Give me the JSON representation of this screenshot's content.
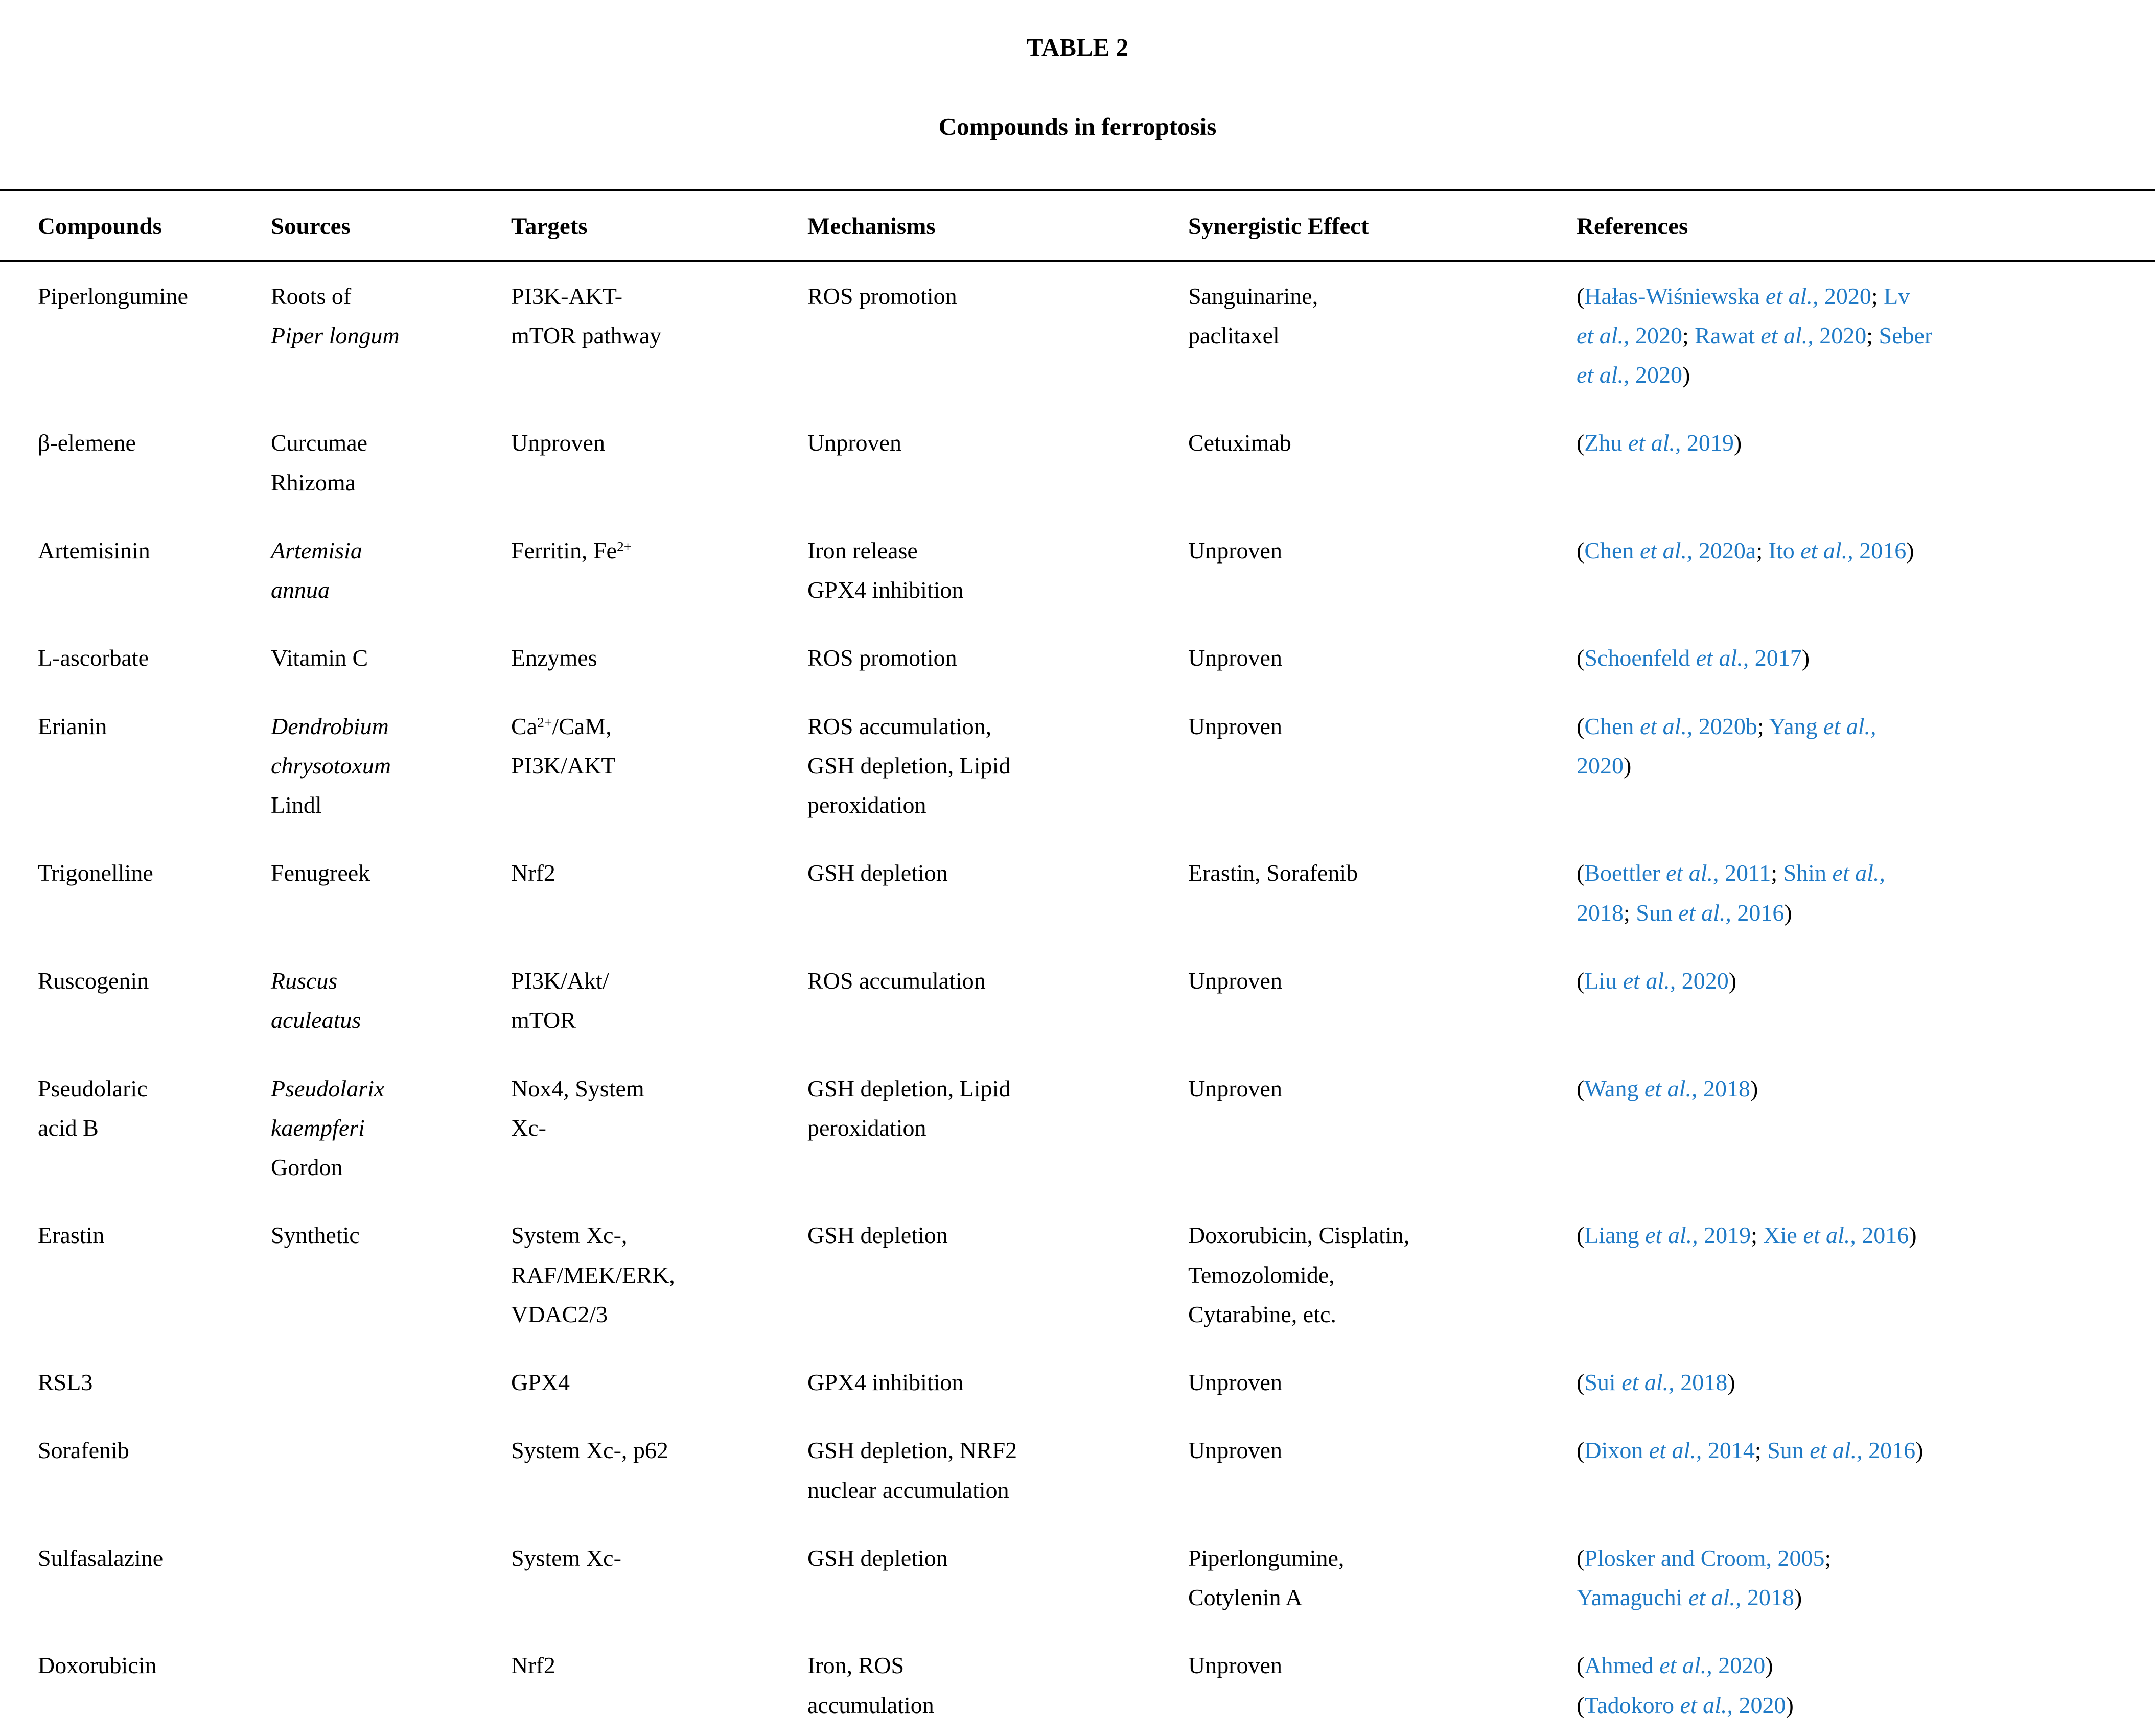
{
  "doc": {
    "label": "TABLE 2",
    "title": "Compounds in ferroptosis"
  },
  "colors": {
    "citation_blue": "#1F7AC6",
    "text": "#000000",
    "rule": "#000000",
    "background": "#FFFFFF"
  },
  "table": {
    "column_keys": [
      "compounds",
      "sources",
      "targets",
      "mechanisms",
      "synergistic-effect",
      "references"
    ],
    "columns": [
      "Compounds",
      "Sources",
      "Targets",
      "Mechanisms",
      "Synergistic Effect",
      "References"
    ],
    "rows": [
      {
        "cells": [
          [
            {
              "t": "Piperlongumine"
            }
          ],
          [
            {
              "t": "Roots of"
            },
            {
              "br": true
            },
            {
              "t": "Piper longum",
              "i": true
            }
          ],
          [
            {
              "t": "PI3K-AKT-"
            },
            {
              "br": true
            },
            {
              "t": "mTOR pathway"
            }
          ],
          [
            {
              "t": "ROS promotion"
            }
          ],
          [
            {
              "t": "Sanguinarine,"
            },
            {
              "br": true
            },
            {
              "t": "paclitaxel"
            }
          ],
          [
            {
              "t": "("
            },
            {
              "cite": [
                {
                  "t": "Hałas-Wiśniewska "
                },
                {
                  "t": "et al.,",
                  "i": true
                },
                {
                  "t": " 2020"
                }
              ]
            },
            {
              "t": "; "
            },
            {
              "cite": [
                {
                  "t": "Lv"
                },
                {
                  "br": true
                },
                {
                  "t": "et al.,",
                  "i": true
                },
                {
                  "t": " 2020"
                }
              ]
            },
            {
              "t": "; "
            },
            {
              "cite": [
                {
                  "t": "Rawat "
                },
                {
                  "t": "et al.,",
                  "i": true
                },
                {
                  "t": " 2020"
                }
              ]
            },
            {
              "t": "; "
            },
            {
              "cite": [
                {
                  "t": "Seber"
                },
                {
                  "br": true
                },
                {
                  "t": "et al.,",
                  "i": true
                },
                {
                  "t": " 2020"
                }
              ]
            },
            {
              "t": ")"
            }
          ]
        ]
      },
      {
        "cells": [
          [
            {
              "t": "β-elemene"
            }
          ],
          [
            {
              "t": "Curcumae"
            },
            {
              "br": true
            },
            {
              "t": "Rhizoma"
            }
          ],
          [
            {
              "t": "Unproven"
            }
          ],
          [
            {
              "t": "Unproven"
            }
          ],
          [
            {
              "t": "Cetuximab"
            }
          ],
          [
            {
              "t": "("
            },
            {
              "cite": [
                {
                  "t": "Zhu "
                },
                {
                  "t": "et al.,",
                  "i": true
                },
                {
                  "t": " 2019"
                }
              ]
            },
            {
              "t": ")"
            }
          ]
        ]
      },
      {
        "cells": [
          [
            {
              "t": "Artemisinin"
            }
          ],
          [
            {
              "t": "Artemisia",
              "i": true
            },
            {
              "br": true
            },
            {
              "t": "annua",
              "i": true
            }
          ],
          [
            {
              "t": "Ferritin, Fe"
            },
            {
              "t": "2+",
              "sup": true
            }
          ],
          [
            {
              "t": "Iron release"
            },
            {
              "br": true
            },
            {
              "t": "GPX4 inhibition"
            }
          ],
          [
            {
              "t": "Unproven"
            }
          ],
          [
            {
              "t": "("
            },
            {
              "cite": [
                {
                  "t": "Chen "
                },
                {
                  "t": "et al.,",
                  "i": true
                },
                {
                  "t": " 2020a"
                }
              ]
            },
            {
              "t": "; "
            },
            {
              "cite": [
                {
                  "t": "Ito "
                },
                {
                  "t": "et al.,",
                  "i": true
                },
                {
                  "t": " 2016"
                }
              ]
            },
            {
              "t": ")"
            }
          ]
        ]
      },
      {
        "cells": [
          [
            {
              "t": "L-ascorbate"
            }
          ],
          [
            {
              "t": "Vitamin C"
            }
          ],
          [
            {
              "t": "Enzymes"
            }
          ],
          [
            {
              "t": "ROS promotion"
            }
          ],
          [
            {
              "t": "Unproven"
            }
          ],
          [
            {
              "t": "("
            },
            {
              "cite": [
                {
                  "t": "Schoenfeld "
                },
                {
                  "t": "et al.,",
                  "i": true
                },
                {
                  "t": " 2017"
                }
              ]
            },
            {
              "t": ")"
            }
          ]
        ]
      },
      {
        "cells": [
          [
            {
              "t": "Erianin"
            }
          ],
          [
            {
              "t": "Dendrobium",
              "i": true
            },
            {
              "br": true
            },
            {
              "t": "chrysotoxum",
              "i": true
            },
            {
              "br": true
            },
            {
              "t": "Lindl"
            }
          ],
          [
            {
              "t": "Ca"
            },
            {
              "t": "2+",
              "sup": true
            },
            {
              "t": "/CaM,"
            },
            {
              "br": true
            },
            {
              "t": "PI3K/AKT"
            }
          ],
          [
            {
              "t": "ROS accumulation,"
            },
            {
              "br": true
            },
            {
              "t": "GSH depletion, Lipid"
            },
            {
              "br": true
            },
            {
              "t": "peroxidation"
            }
          ],
          [
            {
              "t": "Unproven"
            }
          ],
          [
            {
              "t": "("
            },
            {
              "cite": [
                {
                  "t": "Chen "
                },
                {
                  "t": "et al.,",
                  "i": true
                },
                {
                  "t": " 2020b"
                }
              ]
            },
            {
              "t": "; "
            },
            {
              "cite": [
                {
                  "t": "Yang "
                },
                {
                  "t": "et al.,",
                  "i": true
                },
                {
                  "br": true
                },
                {
                  "t": "2020"
                }
              ]
            },
            {
              "t": ")"
            }
          ]
        ]
      },
      {
        "cells": [
          [
            {
              "t": "Trigonelline"
            }
          ],
          [
            {
              "t": "Fenugreek"
            }
          ],
          [
            {
              "t": "Nrf2"
            }
          ],
          [
            {
              "t": "GSH depletion"
            }
          ],
          [
            {
              "t": "Erastin, Sorafenib"
            }
          ],
          [
            {
              "t": "("
            },
            {
              "cite": [
                {
                  "t": "Boettler "
                },
                {
                  "t": "et al.,",
                  "i": true
                },
                {
                  "t": " 2011"
                }
              ]
            },
            {
              "t": "; "
            },
            {
              "cite": [
                {
                  "t": "Shin "
                },
                {
                  "t": "et al.,",
                  "i": true
                },
                {
                  "br": true
                },
                {
                  "t": "2018"
                }
              ]
            },
            {
              "t": "; "
            },
            {
              "cite": [
                {
                  "t": "Sun "
                },
                {
                  "t": "et al.,",
                  "i": true
                },
                {
                  "t": " 2016"
                }
              ]
            },
            {
              "t": ")"
            }
          ]
        ]
      },
      {
        "cells": [
          [
            {
              "t": "Ruscogenin"
            }
          ],
          [
            {
              "t": "Ruscus",
              "i": true
            },
            {
              "br": true
            },
            {
              "t": "aculeatus",
              "i": true
            }
          ],
          [
            {
              "t": "PI3K/Akt/"
            },
            {
              "br": true
            },
            {
              "t": "mTOR"
            }
          ],
          [
            {
              "t": "ROS accumulation"
            }
          ],
          [
            {
              "t": "Unproven"
            }
          ],
          [
            {
              "t": "("
            },
            {
              "cite": [
                {
                  "t": "Liu "
                },
                {
                  "t": "et al.,",
                  "i": true
                },
                {
                  "t": " 2020"
                }
              ]
            },
            {
              "t": ")"
            }
          ]
        ]
      },
      {
        "cells": [
          [
            {
              "t": "Pseudolaric"
            },
            {
              "br": true
            },
            {
              "t": "acid B"
            }
          ],
          [
            {
              "t": "Pseudolarix",
              "i": true
            },
            {
              "br": true
            },
            {
              "t": "kaempferi",
              "i": true
            },
            {
              "br": true
            },
            {
              "t": "Gordon"
            }
          ],
          [
            {
              "t": "Nox4, System"
            },
            {
              "br": true
            },
            {
              "t": "Xc-"
            }
          ],
          [
            {
              "t": "GSH depletion, Lipid"
            },
            {
              "br": true
            },
            {
              "t": "peroxidation"
            }
          ],
          [
            {
              "t": "Unproven"
            }
          ],
          [
            {
              "t": "("
            },
            {
              "cite": [
                {
                  "t": "Wang "
                },
                {
                  "t": "et al.,",
                  "i": true
                },
                {
                  "t": " 2018"
                }
              ]
            },
            {
              "t": ")"
            }
          ]
        ]
      },
      {
        "cells": [
          [
            {
              "t": "Erastin"
            }
          ],
          [
            {
              "t": "Synthetic"
            }
          ],
          [
            {
              "t": "System Xc-,"
            },
            {
              "br": true
            },
            {
              "t": "RAF/MEK/ERK,"
            },
            {
              "br": true
            },
            {
              "t": "VDAC2/3"
            }
          ],
          [
            {
              "t": "GSH depletion"
            }
          ],
          [
            {
              "t": "Doxorubicin, Cisplatin,"
            },
            {
              "br": true
            },
            {
              "t": "Temozolomide,"
            },
            {
              "br": true
            },
            {
              "t": "Cytarabine, etc."
            }
          ],
          [
            {
              "t": "("
            },
            {
              "cite": [
                {
                  "t": "Liang "
                },
                {
                  "t": "et al.,",
                  "i": true
                },
                {
                  "t": " 2019"
                }
              ]
            },
            {
              "t": "; "
            },
            {
              "cite": [
                {
                  "t": "Xie "
                },
                {
                  "t": "et al.,",
                  "i": true
                },
                {
                  "t": " 2016"
                }
              ]
            },
            {
              "t": ")"
            }
          ]
        ]
      },
      {
        "cells": [
          [
            {
              "t": "RSL3"
            }
          ],
          [],
          [
            {
              "t": "GPX4"
            }
          ],
          [
            {
              "t": "GPX4 inhibition"
            }
          ],
          [
            {
              "t": "Unproven"
            }
          ],
          [
            {
              "t": "("
            },
            {
              "cite": [
                {
                  "t": "Sui "
                },
                {
                  "t": "et al.,",
                  "i": true
                },
                {
                  "t": " 2018"
                }
              ]
            },
            {
              "t": ")"
            }
          ]
        ]
      },
      {
        "cells": [
          [
            {
              "t": "Sorafenib"
            }
          ],
          [],
          [
            {
              "t": "System Xc-, p62"
            }
          ],
          [
            {
              "t": "GSH depletion, NRF2"
            },
            {
              "br": true
            },
            {
              "t": "nuclear accumulation"
            }
          ],
          [
            {
              "t": "Unproven"
            }
          ],
          [
            {
              "t": "("
            },
            {
              "cite": [
                {
                  "t": "Dixon "
                },
                {
                  "t": "et al.,",
                  "i": true
                },
                {
                  "t": " 2014"
                }
              ]
            },
            {
              "t": "; "
            },
            {
              "cite": [
                {
                  "t": "Sun "
                },
                {
                  "t": "et al.,",
                  "i": true
                },
                {
                  "t": " 2016"
                }
              ]
            },
            {
              "t": ")"
            }
          ]
        ]
      },
      {
        "cells": [
          [
            {
              "t": "Sulfasalazine"
            }
          ],
          [],
          [
            {
              "t": "System Xc-"
            }
          ],
          [
            {
              "t": "GSH depletion"
            }
          ],
          [
            {
              "t": "Piperlongumine,"
            },
            {
              "br": true
            },
            {
              "t": "Cotylenin A"
            }
          ],
          [
            {
              "t": "("
            },
            {
              "cite": [
                {
                  "t": "Plosker and Croom, 2005"
                }
              ]
            },
            {
              "t": ";"
            },
            {
              "br": true
            },
            {
              "cite": [
                {
                  "t": "Yamaguchi "
                },
                {
                  "t": "et al.,",
                  "i": true
                },
                {
                  "t": " 2018"
                }
              ]
            },
            {
              "t": ")"
            }
          ]
        ]
      },
      {
        "cells": [
          [
            {
              "t": "Doxorubicin"
            }
          ],
          [],
          [
            {
              "t": "Nrf2"
            }
          ],
          [
            {
              "t": "Iron, ROS"
            },
            {
              "br": true
            },
            {
              "t": "accumulation"
            }
          ],
          [
            {
              "t": "Unproven"
            }
          ],
          [
            {
              "t": "("
            },
            {
              "cite": [
                {
                  "t": "Ahmed "
                },
                {
                  "t": "et al.,",
                  "i": true
                },
                {
                  "t": " 2020"
                }
              ]
            },
            {
              "t": ")"
            },
            {
              "br": true
            },
            {
              "t": "("
            },
            {
              "cite": [
                {
                  "t": "Tadokoro "
                },
                {
                  "t": "et al.,",
                  "i": true
                },
                {
                  "t": " 2020"
                }
              ]
            },
            {
              "t": ")"
            }
          ]
        ]
      }
    ]
  }
}
